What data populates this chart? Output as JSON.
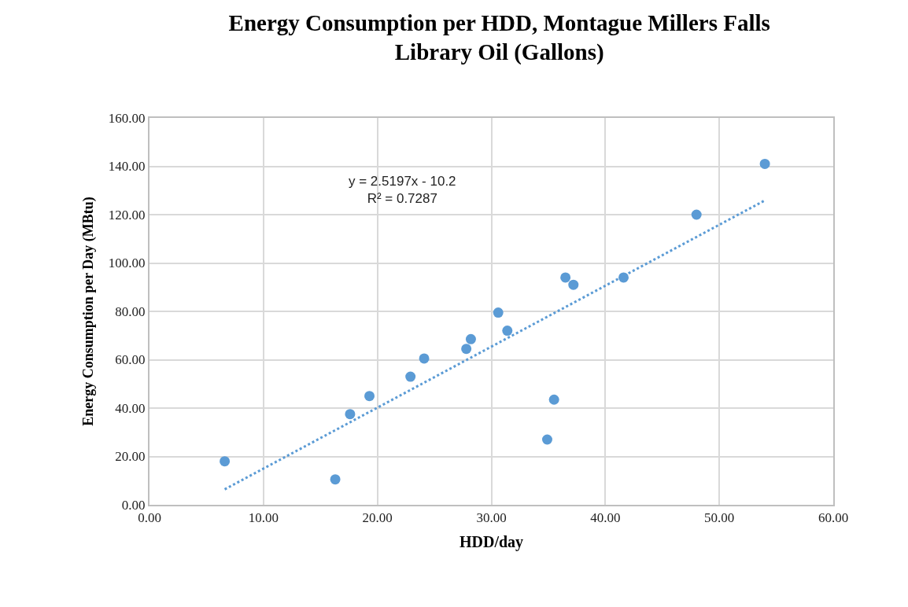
{
  "chart_data": {
    "type": "scatter",
    "title": "Energy Consumption per HDD, Montague Millers Falls\nLibrary Oil (Gallons)",
    "xlabel": "HDD/day",
    "ylabel": "Energy Consumption per Day (MBtu)",
    "annotations": [
      "y = 2.5197x - 10.2\nR² = 0.7287"
    ],
    "series": [
      {
        "color": "#5b9bd5",
        "marker": "circle",
        "x": [
          6.6,
          16.3,
          17.6,
          19.3,
          22.9,
          24.1,
          27.8,
          28.2,
          30.6,
          31.4,
          34.9,
          35.5,
          36.5,
          37.2,
          41.6,
          48.0,
          54.0
        ],
        "values": [
          18,
          10.5,
          37.5,
          45,
          53,
          60.5,
          64.5,
          68.5,
          79.5,
          72,
          27,
          43.5,
          94,
          91,
          94,
          120,
          141
        ]
      },
      {
        "type": "line",
        "color": "#5b9bd5",
        "line_style": "dotted",
        "x": [
          6.6,
          54.0
        ],
        "values": [
          6.4,
          125.9
        ]
      }
    ],
    "xlim": [
      0,
      60
    ],
    "xticks": [
      {
        "value": 0,
        "label": "0.00"
      },
      {
        "value": 10,
        "label": "10.00"
      },
      {
        "value": 20,
        "label": "20.00"
      },
      {
        "value": 30,
        "label": "30.00"
      },
      {
        "value": 40,
        "label": "40.00"
      },
      {
        "value": 50,
        "label": "50.00"
      },
      {
        "value": 60,
        "label": "60.00"
      }
    ],
    "ylim": [
      0,
      160
    ],
    "yticks": [
      {
        "value": 0,
        "label": "0.00"
      },
      {
        "value": 20,
        "label": "20.00"
      },
      {
        "value": 40,
        "label": "40.00"
      },
      {
        "value": 60,
        "label": "60.00"
      },
      {
        "value": 80,
        "label": "80.00"
      },
      {
        "value": 100,
        "label": "100.00"
      },
      {
        "value": 120,
        "label": "120.00"
      },
      {
        "value": 140,
        "label": "140.00"
      },
      {
        "value": 160,
        "label": "160.00"
      }
    ],
    "grid": true
  }
}
